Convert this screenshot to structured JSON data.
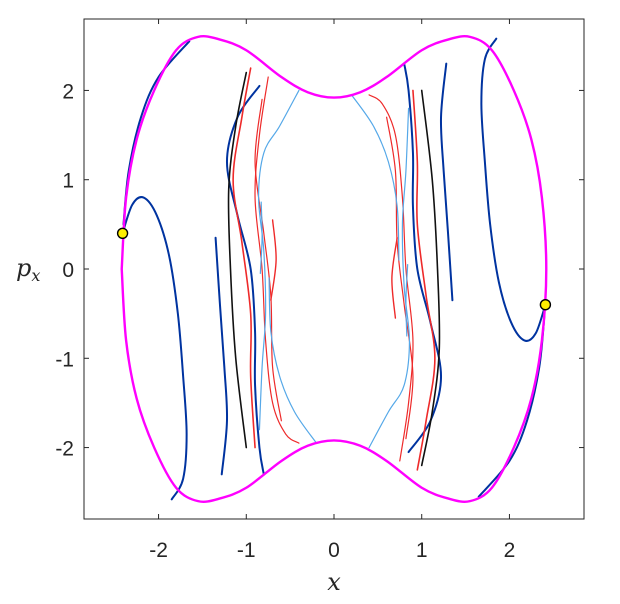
{
  "chart_data": {
    "type": "line",
    "title": "",
    "xlabel": "x",
    "ylabel": {
      "main": "p",
      "sub": "x"
    },
    "xlim": [
      -2.85,
      2.85
    ],
    "ylim": [
      -2.8,
      2.8
    ],
    "xticks": [
      -2,
      -1,
      0,
      1,
      2
    ],
    "xtick_labels": [
      "-2",
      "-1",
      "0",
      "1",
      "2"
    ],
    "yticks": [
      -2,
      -1,
      0,
      1,
      2
    ],
    "ytick_labels": [
      "-2",
      "-1",
      "0",
      "1",
      "2"
    ],
    "grid": false,
    "legend": "none",
    "colors": {
      "boundary": "#ff00ff",
      "dark_blue": "#0033a0",
      "light_blue": "#55a8e8",
      "red": "#ee2a2a",
      "black": "#111111",
      "point_fill": "#ffee00"
    },
    "series": [
      {
        "color_key": "boundary",
        "width": 2.4,
        "points": [
          [
            -2.42,
            0.0
          ],
          [
            -2.37,
            0.8
          ],
          [
            -2.25,
            1.45
          ],
          [
            -2.05,
            2.0
          ],
          [
            -1.8,
            2.45
          ],
          [
            -1.55,
            2.6
          ],
          [
            -1.3,
            2.57
          ],
          [
            -1.0,
            2.45
          ],
          [
            -0.6,
            2.15
          ],
          [
            -0.3,
            1.98
          ],
          [
            0.0,
            1.92
          ],
          [
            0.3,
            1.98
          ],
          [
            0.6,
            2.15
          ],
          [
            1.0,
            2.45
          ],
          [
            1.3,
            2.57
          ],
          [
            1.55,
            2.6
          ],
          [
            1.8,
            2.45
          ],
          [
            2.05,
            2.0
          ],
          [
            2.25,
            1.45
          ],
          [
            2.37,
            0.8
          ],
          [
            2.42,
            0.0
          ],
          [
            2.37,
            -0.8
          ],
          [
            2.25,
            -1.45
          ],
          [
            2.05,
            -2.0
          ],
          [
            1.8,
            -2.45
          ],
          [
            1.55,
            -2.6
          ],
          [
            1.3,
            -2.57
          ],
          [
            1.0,
            -2.45
          ],
          [
            0.6,
            -2.15
          ],
          [
            0.3,
            -1.98
          ],
          [
            0.0,
            -1.92
          ],
          [
            -0.3,
            -1.98
          ],
          [
            -0.6,
            -2.15
          ],
          [
            -1.0,
            -2.45
          ],
          [
            -1.3,
            -2.57
          ],
          [
            -1.55,
            -2.6
          ],
          [
            -1.8,
            -2.45
          ],
          [
            -2.05,
            -2.0
          ],
          [
            -2.25,
            -1.45
          ],
          [
            -2.37,
            -0.8
          ],
          [
            -2.42,
            0.0
          ]
        ]
      },
      {
        "color_key": "dark_blue",
        "width": 2.0,
        "points": [
          [
            -2.41,
            0.4
          ],
          [
            -2.3,
            0.72
          ],
          [
            -2.17,
            0.8
          ],
          [
            -2.02,
            0.6
          ],
          [
            -1.88,
            0.15
          ],
          [
            -1.78,
            -0.5
          ],
          [
            -1.72,
            -1.2
          ],
          [
            -1.68,
            -1.85
          ],
          [
            -1.72,
            -2.35
          ],
          [
            -1.85,
            -2.58
          ]
        ]
      },
      {
        "color_key": "dark_blue",
        "width": 2.0,
        "points": [
          [
            2.41,
            -0.4
          ],
          [
            2.3,
            -0.72
          ],
          [
            2.17,
            -0.8
          ],
          [
            2.02,
            -0.6
          ],
          [
            1.88,
            -0.15
          ],
          [
            1.78,
            0.5
          ],
          [
            1.72,
            1.2
          ],
          [
            1.68,
            1.85
          ],
          [
            1.72,
            2.35
          ],
          [
            1.85,
            2.58
          ]
        ]
      },
      {
        "color_key": "dark_blue",
        "width": 2.0,
        "points": [
          [
            -2.4,
            0.5
          ],
          [
            -2.34,
            1.1
          ],
          [
            -2.2,
            1.7
          ],
          [
            -2.0,
            2.15
          ],
          [
            -1.65,
            2.55
          ]
        ]
      },
      {
        "color_key": "dark_blue",
        "width": 2.0,
        "points": [
          [
            2.4,
            -0.5
          ],
          [
            2.34,
            -1.1
          ],
          [
            2.2,
            -1.7
          ],
          [
            2.0,
            -2.15
          ],
          [
            1.65,
            -2.55
          ]
        ]
      },
      {
        "color_key": "dark_blue",
        "width": 2.0,
        "points": [
          [
            -0.85,
            2.05
          ],
          [
            -1.1,
            1.7
          ],
          [
            -1.22,
            1.2
          ],
          [
            -1.1,
            0.6
          ],
          [
            -0.95,
            0.0
          ],
          [
            -0.9,
            -0.7
          ],
          [
            -0.9,
            -1.3
          ],
          [
            -0.85,
            -2.0
          ],
          [
            -0.8,
            -2.3
          ]
        ]
      },
      {
        "color_key": "dark_blue",
        "width": 2.0,
        "points": [
          [
            0.85,
            -2.05
          ],
          [
            1.1,
            -1.7
          ],
          [
            1.22,
            -1.2
          ],
          [
            1.1,
            -0.6
          ],
          [
            0.95,
            0.0
          ],
          [
            0.9,
            0.7
          ],
          [
            0.9,
            1.3
          ],
          [
            0.85,
            2.0
          ],
          [
            0.8,
            2.3
          ]
        ]
      },
      {
        "color_key": "dark_blue",
        "width": 2.0,
        "points": [
          [
            1.35,
            -0.35
          ],
          [
            1.3,
            0.4
          ],
          [
            1.25,
            1.1
          ],
          [
            1.22,
            1.7
          ],
          [
            1.28,
            2.3
          ]
        ]
      },
      {
        "color_key": "dark_blue",
        "width": 2.0,
        "points": [
          [
            -1.35,
            0.35
          ],
          [
            -1.3,
            -0.4
          ],
          [
            -1.25,
            -1.1
          ],
          [
            -1.22,
            -1.7
          ],
          [
            -1.28,
            -2.3
          ]
        ]
      },
      {
        "color_key": "red",
        "width": 1.6,
        "points": [
          [
            -0.95,
            2.25
          ],
          [
            -1.05,
            1.7
          ],
          [
            -1.15,
            1.0
          ],
          [
            -1.05,
            0.3
          ],
          [
            -0.95,
            -0.5
          ],
          [
            -0.95,
            -1.2
          ],
          [
            -0.9,
            -2.0
          ]
        ]
      },
      {
        "color_key": "red",
        "width": 1.6,
        "points": [
          [
            0.95,
            -2.25
          ],
          [
            1.05,
            -1.7
          ],
          [
            1.15,
            -1.0
          ],
          [
            1.05,
            -0.3
          ],
          [
            0.95,
            0.5
          ],
          [
            0.95,
            1.2
          ],
          [
            0.9,
            2.0
          ]
        ]
      },
      {
        "color_key": "black",
        "width": 1.6,
        "points": [
          [
            -1.0,
            2.2
          ],
          [
            -1.12,
            1.6
          ],
          [
            -1.2,
            0.9
          ],
          [
            -1.18,
            0.0
          ],
          [
            -1.12,
            -1.0
          ],
          [
            -1.0,
            -2.0
          ]
        ]
      },
      {
        "color_key": "black",
        "width": 1.6,
        "points": [
          [
            1.0,
            -2.2
          ],
          [
            1.12,
            -1.6
          ],
          [
            1.2,
            -0.9
          ],
          [
            1.18,
            0.0
          ],
          [
            1.12,
            1.0
          ],
          [
            1.0,
            2.0
          ]
        ]
      },
      {
        "color_key": "red",
        "width": 1.2,
        "points": [
          [
            -0.75,
            2.15
          ],
          [
            -0.85,
            1.5
          ],
          [
            -0.9,
            0.8
          ],
          [
            -0.82,
            0.0
          ],
          [
            -0.78,
            -0.8
          ],
          [
            -0.7,
            -1.5
          ],
          [
            -0.55,
            -1.85
          ],
          [
            -0.4,
            -1.95
          ]
        ]
      },
      {
        "color_key": "red",
        "width": 1.2,
        "points": [
          [
            0.75,
            -2.15
          ],
          [
            0.85,
            -1.5
          ],
          [
            0.9,
            -0.8
          ],
          [
            0.82,
            0.0
          ],
          [
            0.78,
            0.8
          ],
          [
            0.7,
            1.5
          ],
          [
            0.55,
            1.85
          ],
          [
            0.4,
            1.95
          ]
        ]
      },
      {
        "color_key": "red",
        "width": 1.2,
        "points": [
          [
            -0.82,
            1.9
          ],
          [
            -0.9,
            1.2
          ],
          [
            -0.8,
            0.4
          ],
          [
            -0.72,
            -0.3
          ],
          [
            -0.7,
            -1.1
          ],
          [
            -0.6,
            -1.7
          ]
        ]
      },
      {
        "color_key": "red",
        "width": 1.2,
        "points": [
          [
            0.82,
            -1.9
          ],
          [
            0.9,
            -1.2
          ],
          [
            0.8,
            -0.4
          ],
          [
            0.72,
            0.3
          ],
          [
            0.7,
            1.1
          ],
          [
            0.6,
            1.7
          ]
        ]
      },
      {
        "color_key": "red",
        "width": 1.4,
        "points": [
          [
            -0.7,
            0.55
          ],
          [
            -0.66,
            0.1
          ],
          [
            -0.72,
            -0.35
          ]
        ]
      },
      {
        "color_key": "red",
        "width": 1.4,
        "points": [
          [
            0.7,
            -0.55
          ],
          [
            0.66,
            -0.1
          ],
          [
            0.72,
            0.35
          ]
        ]
      },
      {
        "color_key": "light_blue",
        "width": 1.2,
        "points": [
          [
            -0.4,
            2.0
          ],
          [
            -0.62,
            1.6
          ],
          [
            -0.8,
            1.3
          ],
          [
            -0.86,
            0.8
          ],
          [
            -0.8,
            0.2
          ],
          [
            -0.78,
            -0.5
          ],
          [
            -0.82,
            -1.1
          ],
          [
            -0.85,
            -1.8
          ]
        ]
      },
      {
        "color_key": "light_blue",
        "width": 1.2,
        "points": [
          [
            0.4,
            -2.0
          ],
          [
            0.62,
            -1.6
          ],
          [
            0.8,
            -1.3
          ],
          [
            0.86,
            -0.8
          ],
          [
            0.8,
            -0.2
          ],
          [
            0.78,
            0.5
          ],
          [
            0.82,
            1.1
          ],
          [
            0.85,
            1.8
          ]
        ]
      },
      {
        "color_key": "light_blue",
        "width": 1.2,
        "points": [
          [
            -0.2,
            -1.95
          ],
          [
            -0.45,
            -1.6
          ],
          [
            -0.62,
            -1.2
          ],
          [
            -0.72,
            -0.7
          ],
          [
            -0.74,
            -0.1
          ]
        ]
      },
      {
        "color_key": "light_blue",
        "width": 1.2,
        "points": [
          [
            0.2,
            1.95
          ],
          [
            0.45,
            1.6
          ],
          [
            0.62,
            1.2
          ],
          [
            0.72,
            0.7
          ],
          [
            0.74,
            0.1
          ]
        ]
      },
      {
        "color_key": "light_blue",
        "width": 1.2,
        "points": [
          [
            -0.83,
            0.75
          ],
          [
            -0.82,
            0.35
          ],
          [
            -0.84,
            -0.05
          ]
        ]
      },
      {
        "color_key": "light_blue",
        "width": 1.2,
        "points": [
          [
            0.83,
            -0.75
          ],
          [
            0.82,
            -0.35
          ],
          [
            0.84,
            0.05
          ]
        ]
      }
    ],
    "markers": [
      {
        "x": -2.41,
        "y": 0.4
      },
      {
        "x": 2.41,
        "y": -0.4
      }
    ]
  }
}
